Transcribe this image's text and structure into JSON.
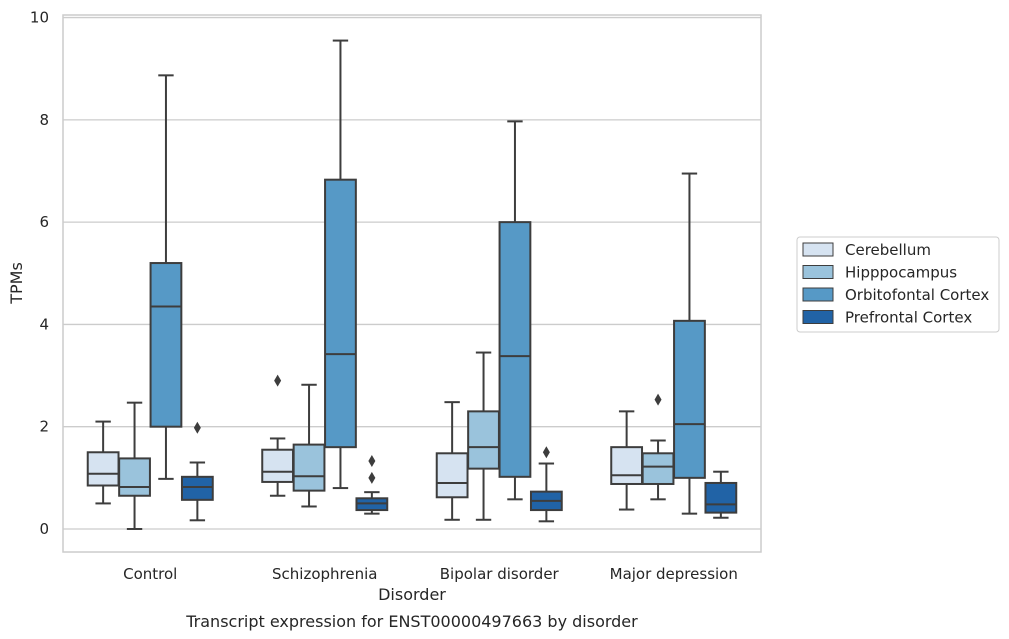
{
  "caption": "Transcript expression for ENST00000497663 by disorder",
  "chart_data": {
    "type": "boxplot",
    "xlabel": "Disorder",
    "ylabel": "TPMs",
    "ylim": [
      -0.45,
      10.05
    ],
    "yticks": [
      "0",
      "2",
      "4",
      "6",
      "8",
      "10"
    ],
    "grid": "horizontal",
    "legend_position": "right",
    "categories": [
      "Control",
      "Schizophrenia",
      "Bipolar disorder",
      "Major depression"
    ],
    "series": [
      {
        "name": "Cerebellum",
        "color": "#d6e3f1",
        "boxes": [
          {
            "whislo": 0.5,
            "q1": 0.85,
            "med": 1.08,
            "q3": 1.5,
            "whishi": 2.1,
            "fliers": []
          },
          {
            "whislo": 0.65,
            "q1": 0.92,
            "med": 1.12,
            "q3": 1.55,
            "whishi": 1.77,
            "fliers": [
              2.9
            ]
          },
          {
            "whislo": 0.18,
            "q1": 0.62,
            "med": 0.9,
            "q3": 1.48,
            "whishi": 2.48,
            "fliers": []
          },
          {
            "whislo": 0.38,
            "q1": 0.88,
            "med": 1.05,
            "q3": 1.6,
            "whishi": 2.3,
            "fliers": []
          }
        ]
      },
      {
        "name": "Hipppocampus",
        "color": "#9ac3dc",
        "boxes": [
          {
            "whislo": 0.0,
            "q1": 0.65,
            "med": 0.82,
            "q3": 1.38,
            "whishi": 2.47,
            "fliers": []
          },
          {
            "whislo": 0.44,
            "q1": 0.75,
            "med": 1.03,
            "q3": 1.65,
            "whishi": 2.82,
            "fliers": []
          },
          {
            "whislo": 0.18,
            "q1": 1.18,
            "med": 1.6,
            "q3": 2.3,
            "whishi": 3.45,
            "fliers": []
          },
          {
            "whislo": 0.58,
            "q1": 0.88,
            "med": 1.22,
            "q3": 1.48,
            "whishi": 1.73,
            "fliers": [
              2.53
            ]
          }
        ]
      },
      {
        "name": "Orbitofontal Cortex",
        "color": "#5699c6",
        "boxes": [
          {
            "whislo": 0.98,
            "q1": 2.0,
            "med": 4.35,
            "q3": 5.2,
            "whishi": 8.87,
            "fliers": []
          },
          {
            "whislo": 0.8,
            "q1": 1.6,
            "med": 3.42,
            "q3": 6.83,
            "whishi": 9.55,
            "fliers": []
          },
          {
            "whislo": 0.58,
            "q1": 1.02,
            "med": 3.38,
            "q3": 6.0,
            "whishi": 7.97,
            "fliers": []
          },
          {
            "whislo": 0.3,
            "q1": 1.0,
            "med": 2.05,
            "q3": 4.07,
            "whishi": 6.95,
            "fliers": []
          }
        ]
      },
      {
        "name": "Prefrontal Cortex",
        "color": "#2163a6",
        "boxes": [
          {
            "whislo": 0.17,
            "q1": 0.57,
            "med": 0.82,
            "q3": 1.02,
            "whishi": 1.3,
            "fliers": [
              1.98
            ]
          },
          {
            "whislo": 0.3,
            "q1": 0.37,
            "med": 0.5,
            "q3": 0.6,
            "whishi": 0.72,
            "fliers": [
              1.0,
              1.33
            ]
          },
          {
            "whislo": 0.15,
            "q1": 0.37,
            "med": 0.55,
            "q3": 0.73,
            "whishi": 1.28,
            "fliers": [
              1.5
            ]
          },
          {
            "whislo": 0.22,
            "q1": 0.32,
            "med": 0.48,
            "q3": 0.9,
            "whishi": 1.12,
            "fliers": []
          }
        ]
      }
    ]
  }
}
